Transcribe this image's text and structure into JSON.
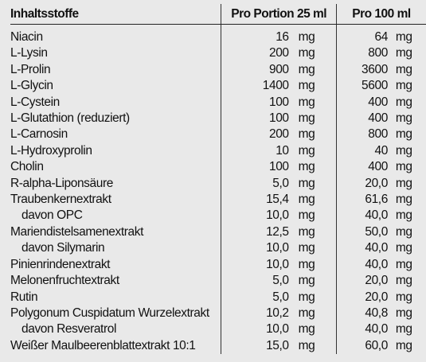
{
  "header": {
    "name": "Inhaltsstoffe",
    "portion": "Pro Portion 25 ml",
    "per100": "Pro 100 ml"
  },
  "rows": [
    {
      "name": "Niacin",
      "sub": false,
      "p_val": "16",
      "p_unit": "mg",
      "h_val": "64",
      "h_unit": "mg"
    },
    {
      "name": "L-Lysin",
      "sub": false,
      "p_val": "200",
      "p_unit": "mg",
      "h_val": "800",
      "h_unit": "mg"
    },
    {
      "name": "L-Prolin",
      "sub": false,
      "p_val": "900",
      "p_unit": "mg",
      "h_val": "3600",
      "h_unit": "mg"
    },
    {
      "name": "L-Glycin",
      "sub": false,
      "p_val": "1400",
      "p_unit": "mg",
      "h_val": "5600",
      "h_unit": "mg"
    },
    {
      "name": "L-Cystein",
      "sub": false,
      "p_val": "100",
      "p_unit": "mg",
      "h_val": "400",
      "h_unit": "mg"
    },
    {
      "name": "L-Glutathion (reduziert)",
      "sub": false,
      "p_val": "100",
      "p_unit": "mg",
      "h_val": "400",
      "h_unit": "mg"
    },
    {
      "name": "L-Carnosin",
      "sub": false,
      "p_val": "200",
      "p_unit": "mg",
      "h_val": "800",
      "h_unit": "mg"
    },
    {
      "name": "L-Hydroxyprolin",
      "sub": false,
      "p_val": "10",
      "p_unit": "mg",
      "h_val": "40",
      "h_unit": "mg"
    },
    {
      "name": "Cholin",
      "sub": false,
      "p_val": "100",
      "p_unit": "mg",
      "h_val": "400",
      "h_unit": "mg"
    },
    {
      "name": "R-alpha-Liponsäure",
      "sub": false,
      "p_val": "5,0",
      "p_unit": "mg",
      "h_val": "20,0",
      "h_unit": "mg"
    },
    {
      "name": "Traubenkernextrakt",
      "sub": false,
      "p_val": "15,4",
      "p_unit": "mg",
      "h_val": "61,6",
      "h_unit": "mg"
    },
    {
      "name": "davon OPC",
      "sub": true,
      "p_val": "10,0",
      "p_unit": "mg",
      "h_val": "40,0",
      "h_unit": "mg"
    },
    {
      "name": "Mariendistelsamenextrakt",
      "sub": false,
      "p_val": "12,5",
      "p_unit": "mg",
      "h_val": "50,0",
      "h_unit": "mg"
    },
    {
      "name": "davon Silymarin",
      "sub": true,
      "p_val": "10,0",
      "p_unit": "mg",
      "h_val": "40,0",
      "h_unit": "mg"
    },
    {
      "name": "Pinienrindenextrakt",
      "sub": false,
      "p_val": "10,0",
      "p_unit": "mg",
      "h_val": "40,0",
      "h_unit": "mg"
    },
    {
      "name": "Melonenfruchtextrakt",
      "sub": false,
      "p_val": "5,0",
      "p_unit": "mg",
      "h_val": "20,0",
      "h_unit": "mg"
    },
    {
      "name": "Rutin",
      "sub": false,
      "p_val": "5,0",
      "p_unit": "mg",
      "h_val": "20,0",
      "h_unit": "mg"
    },
    {
      "name": "Polygonum Cuspidatum Wurzelextrakt",
      "sub": false,
      "p_val": "10,2",
      "p_unit": "mg",
      "h_val": "40,8",
      "h_unit": "mg"
    },
    {
      "name": "davon Resveratrol",
      "sub": true,
      "p_val": "10,0",
      "p_unit": "mg",
      "h_val": "40,0",
      "h_unit": "mg"
    },
    {
      "name": "Weißer Maulbeerenblattextrakt 10:1",
      "sub": false,
      "p_val": "15,0",
      "p_unit": "mg",
      "h_val": "60,0",
      "h_unit": "mg"
    }
  ]
}
